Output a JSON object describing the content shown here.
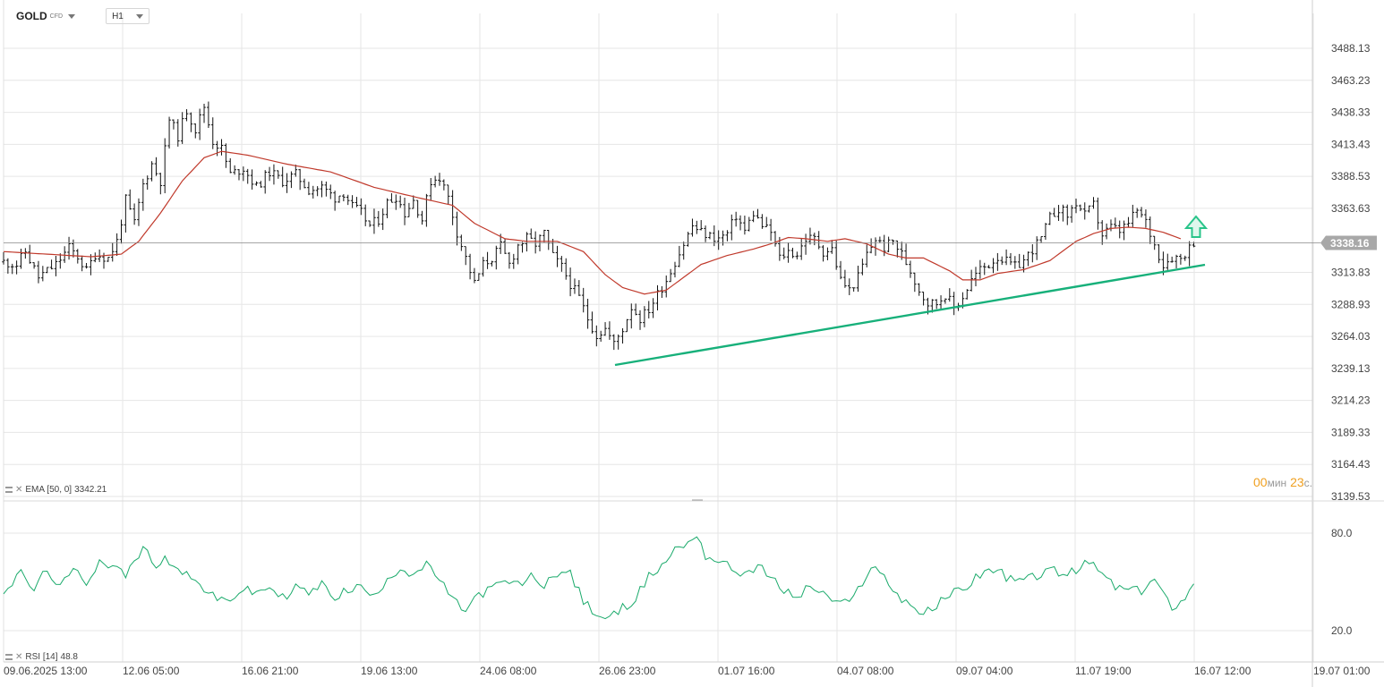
{
  "header": {
    "symbol": "GOLD",
    "symbol_type": "CFD",
    "timeframe": "H1"
  },
  "indicators": {
    "ema_label": "EMA [50, 0]",
    "ema_value": "3342.21",
    "rsi_label": "RSI [14]",
    "rsi_value": "48.8"
  },
  "timer": {
    "minutes": "00",
    "min_unit": "мин",
    "seconds": "23",
    "sec_unit": "с."
  },
  "colors": {
    "candle": "#111111",
    "ema": "#c0392b",
    "trendline": "#17b07a",
    "rsi": "#1aaa6b",
    "arrow": "#29c48a",
    "grid": "#e6e6e6"
  },
  "chart_data": [
    {
      "type": "candlestick",
      "title": "GOLD",
      "timeframe": "H1",
      "x_tick_labels": [
        "09.06.2025  13:00",
        "12.06  05:00",
        "16.06  21:00",
        "19.06  13:00",
        "24.06  08:00",
        "26.06  23:00",
        "01.07  16:00",
        "04.07  08:00",
        "09.07  04:00",
        "11.07  19:00",
        "16.07  12:00",
        "19.07  01:00"
      ],
      "y_tick_labels": [
        "3488.13",
        "3463.23",
        "3438.33",
        "3413.43",
        "3388.53",
        "3363.63",
        "3313.83",
        "3288.93",
        "3264.03",
        "3239.13",
        "3214.23",
        "3189.33",
        "3164.43",
        "3139.53"
      ],
      "ylim": [
        3139.53,
        3488.13
      ],
      "current_price": "3338.16",
      "path_keypoints": [
        [
          0,
          3322
        ],
        [
          3,
          3320
        ],
        [
          5,
          3330
        ],
        [
          8,
          3310
        ],
        [
          12,
          3320
        ],
        [
          15,
          3333
        ],
        [
          17,
          3326
        ],
        [
          19,
          3315
        ],
        [
          21,
          3328
        ],
        [
          24,
          3325
        ],
        [
          26,
          3338
        ],
        [
          28,
          3370
        ],
        [
          30,
          3352
        ],
        [
          32,
          3382
        ],
        [
          34,
          3398
        ],
        [
          36,
          3385
        ],
        [
          38,
          3433
        ],
        [
          40,
          3420
        ],
        [
          42,
          3440
        ],
        [
          44,
          3425
        ],
        [
          46,
          3443
        ],
        [
          48,
          3416
        ],
        [
          50,
          3410
        ],
        [
          52,
          3390
        ],
        [
          55,
          3395
        ],
        [
          58,
          3380
        ],
        [
          61,
          3392
        ],
        [
          64,
          3385
        ],
        [
          67,
          3390
        ],
        [
          70,
          3378
        ],
        [
          73,
          3380
        ],
        [
          76,
          3372
        ],
        [
          78,
          3376
        ],
        [
          80,
          3365
        ],
        [
          82,
          3360
        ],
        [
          84,
          3350
        ],
        [
          86,
          3355
        ],
        [
          88,
          3368
        ],
        [
          90,
          3373
        ],
        [
          92,
          3360
        ],
        [
          94,
          3370
        ],
        [
          96,
          3355
        ],
        [
          98,
          3385
        ],
        [
          100,
          3388
        ],
        [
          102,
          3372
        ],
        [
          104,
          3345
        ],
        [
          106,
          3325
        ],
        [
          108,
          3305
        ],
        [
          110,
          3320
        ],
        [
          112,
          3325
        ],
        [
          114,
          3334
        ],
        [
          116,
          3320
        ],
        [
          118,
          3335
        ],
        [
          120,
          3340
        ],
        [
          122,
          3336
        ],
        [
          124,
          3344
        ],
        [
          126,
          3326
        ],
        [
          128,
          3318
        ],
        [
          130,
          3305
        ],
        [
          132,
          3294
        ],
        [
          134,
          3278
        ],
        [
          136,
          3265
        ],
        [
          138,
          3270
        ],
        [
          140,
          3258
        ],
        [
          142,
          3270
        ],
        [
          144,
          3287
        ],
        [
          146,
          3278
        ],
        [
          148,
          3285
        ],
        [
          150,
          3297
        ],
        [
          152,
          3308
        ],
        [
          154,
          3322
        ],
        [
          156,
          3336
        ],
        [
          158,
          3350
        ],
        [
          160,
          3345
        ],
        [
          162,
          3342
        ],
        [
          164,
          3340
        ],
        [
          166,
          3344
        ],
        [
          168,
          3358
        ],
        [
          170,
          3346
        ],
        [
          172,
          3360
        ],
        [
          174,
          3350
        ],
        [
          176,
          3345
        ],
        [
          178,
          3325
        ],
        [
          180,
          3330
        ],
        [
          182,
          3328
        ],
        [
          184,
          3340
        ],
        [
          186,
          3340
        ],
        [
          188,
          3330
        ],
        [
          190,
          3332
        ],
        [
          192,
          3308
        ],
        [
          194,
          3300
        ],
        [
          196,
          3310
        ],
        [
          198,
          3328
        ],
        [
          200,
          3340
        ],
        [
          202,
          3333
        ],
        [
          204,
          3338
        ],
        [
          206,
          3328
        ],
        [
          208,
          3315
        ],
        [
          210,
          3300
        ],
        [
          212,
          3290
        ],
        [
          214,
          3290
        ],
        [
          216,
          3297
        ],
        [
          218,
          3286
        ],
        [
          220,
          3295
        ],
        [
          222,
          3308
        ],
        [
          224,
          3316
        ],
        [
          226,
          3320
        ],
        [
          228,
          3326
        ],
        [
          230,
          3322
        ],
        [
          232,
          3318
        ],
        [
          234,
          3323
        ],
        [
          236,
          3332
        ],
        [
          238,
          3340
        ],
        [
          240,
          3356
        ],
        [
          242,
          3364
        ],
        [
          244,
          3358
        ],
        [
          246,
          3368
        ],
        [
          248,
          3358
        ],
        [
          250,
          3366
        ],
        [
          252,
          3343
        ],
        [
          254,
          3349
        ],
        [
          256,
          3346
        ],
        [
          258,
          3352
        ],
        [
          260,
          3362
        ],
        [
          262,
          3353
        ],
        [
          264,
          3335
        ],
        [
          266,
          3320
        ],
        [
          268,
          3326
        ],
        [
          270,
          3325
        ],
        [
          272,
          3333
        ],
        [
          273,
          3338
        ]
      ],
      "ema_keypoints": [
        [
          0,
          3330
        ],
        [
          10,
          3328
        ],
        [
          20,
          3326
        ],
        [
          27,
          3328
        ],
        [
          31,
          3338
        ],
        [
          36,
          3360
        ],
        [
          41,
          3385
        ],
        [
          46,
          3403
        ],
        [
          50,
          3408
        ],
        [
          56,
          3405
        ],
        [
          65,
          3398
        ],
        [
          75,
          3392
        ],
        [
          85,
          3380
        ],
        [
          95,
          3372
        ],
        [
          103,
          3366
        ],
        [
          108,
          3352
        ],
        [
          115,
          3340
        ],
        [
          120,
          3338
        ],
        [
          127,
          3338
        ],
        [
          133,
          3330
        ],
        [
          138,
          3312
        ],
        [
          142,
          3302
        ],
        [
          147,
          3297
        ],
        [
          152,
          3300
        ],
        [
          156,
          3310
        ],
        [
          160,
          3320
        ],
        [
          166,
          3327
        ],
        [
          172,
          3332
        ],
        [
          176,
          3336
        ],
        [
          180,
          3341
        ],
        [
          184,
          3340
        ],
        [
          189,
          3338
        ],
        [
          193,
          3340
        ],
        [
          198,
          3336
        ],
        [
          203,
          3328
        ],
        [
          207,
          3325
        ],
        [
          211,
          3325
        ],
        [
          214,
          3320
        ],
        [
          217,
          3315
        ],
        [
          220,
          3308
        ],
        [
          224,
          3308
        ],
        [
          228,
          3313
        ],
        [
          234,
          3316
        ],
        [
          240,
          3323
        ],
        [
          246,
          3338
        ],
        [
          250,
          3344
        ],
        [
          254,
          3348
        ],
        [
          258,
          3349
        ],
        [
          262,
          3348
        ],
        [
          266,
          3345
        ],
        [
          270,
          3340
        ]
      ],
      "trendline": [
        [
          0,
          3245
        ],
        [
          1,
          3320
        ]
      ]
    },
    {
      "type": "line",
      "title": "RSI [14]",
      "y_tick_labels": [
        "80.0",
        "20.0"
      ],
      "ylim": [
        10,
        90
      ],
      "current_value": 48.8,
      "keypoints": [
        [
          0,
          44
        ],
        [
          4,
          55
        ],
        [
          7,
          45
        ],
        [
          10,
          58
        ],
        [
          13,
          46
        ],
        [
          16,
          57
        ],
        [
          19,
          50
        ],
        [
          22,
          63
        ],
        [
          25,
          60
        ],
        [
          28,
          54
        ],
        [
          31,
          66
        ],
        [
          33,
          72
        ],
        [
          35,
          58
        ],
        [
          37,
          64
        ],
        [
          40,
          60
        ],
        [
          43,
          52
        ],
        [
          46,
          46
        ],
        [
          49,
          38
        ],
        [
          52,
          40
        ],
        [
          55,
          45
        ],
        [
          58,
          43
        ],
        [
          61,
          47
        ],
        [
          64,
          40
        ],
        [
          67,
          47
        ],
        [
          70,
          43
        ],
        [
          73,
          48
        ],
        [
          76,
          41
        ],
        [
          79,
          45
        ],
        [
          82,
          47
        ],
        [
          85,
          40
        ],
        [
          88,
          53
        ],
        [
          91,
          58
        ],
        [
          94,
          55
        ],
        [
          97,
          60
        ],
        [
          100,
          52
        ],
        [
          103,
          38
        ],
        [
          106,
          33
        ],
        [
          109,
          42
        ],
        [
          112,
          46
        ],
        [
          115,
          50
        ],
        [
          118,
          48
        ],
        [
          121,
          53
        ],
        [
          124,
          48
        ],
        [
          127,
          56
        ],
        [
          130,
          55
        ],
        [
          133,
          38
        ],
        [
          136,
          30
        ],
        [
          139,
          27
        ],
        [
          142,
          34
        ],
        [
          145,
          40
        ],
        [
          148,
          53
        ],
        [
          151,
          60
        ],
        [
          154,
          70
        ],
        [
          157,
          74
        ],
        [
          159,
          80
        ],
        [
          161,
          66
        ],
        [
          164,
          63
        ],
        [
          167,
          58
        ],
        [
          170,
          55
        ],
        [
          173,
          60
        ],
        [
          176,
          52
        ],
        [
          179,
          45
        ],
        [
          182,
          40
        ],
        [
          185,
          48
        ],
        [
          188,
          42
        ],
        [
          191,
          38
        ],
        [
          194,
          36
        ],
        [
          197,
          50
        ],
        [
          199,
          60
        ],
        [
          202,
          53
        ],
        [
          205,
          42
        ],
        [
          208,
          36
        ],
        [
          211,
          30
        ],
        [
          214,
          35
        ],
        [
          217,
          43
        ],
        [
          220,
          45
        ],
        [
          223,
          53
        ],
        [
          226,
          58
        ],
        [
          229,
          55
        ],
        [
          232,
          50
        ],
        [
          235,
          52
        ],
        [
          238,
          55
        ],
        [
          241,
          57
        ],
        [
          244,
          54
        ],
        [
          247,
          59
        ],
        [
          249,
          62
        ],
        [
          252,
          55
        ],
        [
          255,
          47
        ],
        [
          258,
          45
        ],
        [
          261,
          44
        ],
        [
          264,
          52
        ],
        [
          266,
          42
        ],
        [
          268,
          35
        ],
        [
          270,
          38
        ],
        [
          272,
          44
        ],
        [
          273,
          48.8
        ]
      ]
    }
  ]
}
